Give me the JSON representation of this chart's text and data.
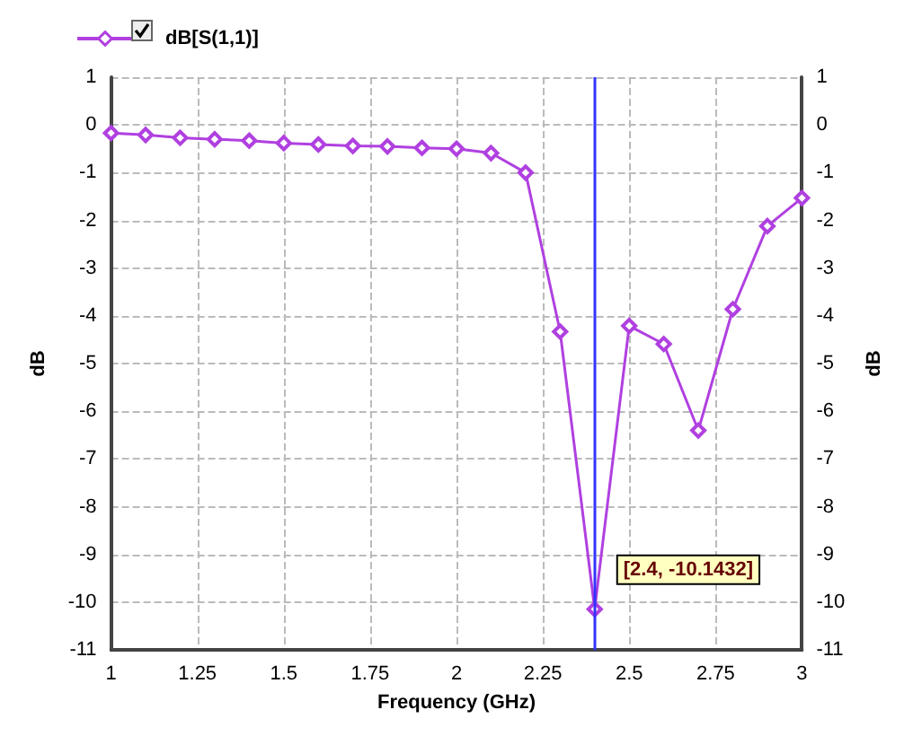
{
  "chart_data": {
    "type": "line",
    "xlabel": "Frequency (GHz)",
    "ylabel": "dB",
    "y2label": "dB",
    "x": [
      1,
      1.1,
      1.2,
      1.3,
      1.4,
      1.5,
      1.6,
      1.7,
      1.8,
      1.9,
      2,
      2.1,
      2.2,
      2.3,
      2.4,
      2.5,
      2.6,
      2.7,
      2.8,
      2.9,
      3
    ],
    "series": [
      {
        "name": "dB[S(1,1)]",
        "color": "#b040e0",
        "values": [
          -0.17,
          -0.21,
          -0.27,
          -0.3,
          -0.33,
          -0.38,
          -0.41,
          -0.44,
          -0.45,
          -0.48,
          -0.5,
          -0.59,
          -1.0,
          -4.33,
          -10.1432,
          -4.21,
          -4.59,
          -6.4,
          -3.86,
          -2.12,
          -1.53
        ]
      }
    ],
    "xlim": [
      1,
      3
    ],
    "xticks": [
      1,
      1.25,
      1.5,
      1.75,
      2,
      2.25,
      2.5,
      2.75,
      3
    ],
    "ylim": [
      -11,
      1
    ],
    "yticks": [
      -11,
      -10,
      -9,
      -8,
      -7,
      -6,
      -5,
      -4,
      -3,
      -2,
      -1,
      0,
      1
    ],
    "y2lim": [
      -11,
      1
    ],
    "y2ticks": [
      -11,
      -10,
      -9,
      -8,
      -7,
      -6,
      -5,
      -4,
      -3,
      -2,
      -1,
      0,
      1
    ],
    "ref_lines": [
      {
        "axis": "x",
        "value": 2.4,
        "color": "#3333ff",
        "line_style": "solid"
      }
    ],
    "annotations": [
      {
        "text": "[2.4, -10.1432]",
        "x": 2.4,
        "y": -10.1432
      }
    ],
    "grid": true,
    "legend": "top left",
    "marker": "diamond",
    "line_style": "solid"
  }
}
